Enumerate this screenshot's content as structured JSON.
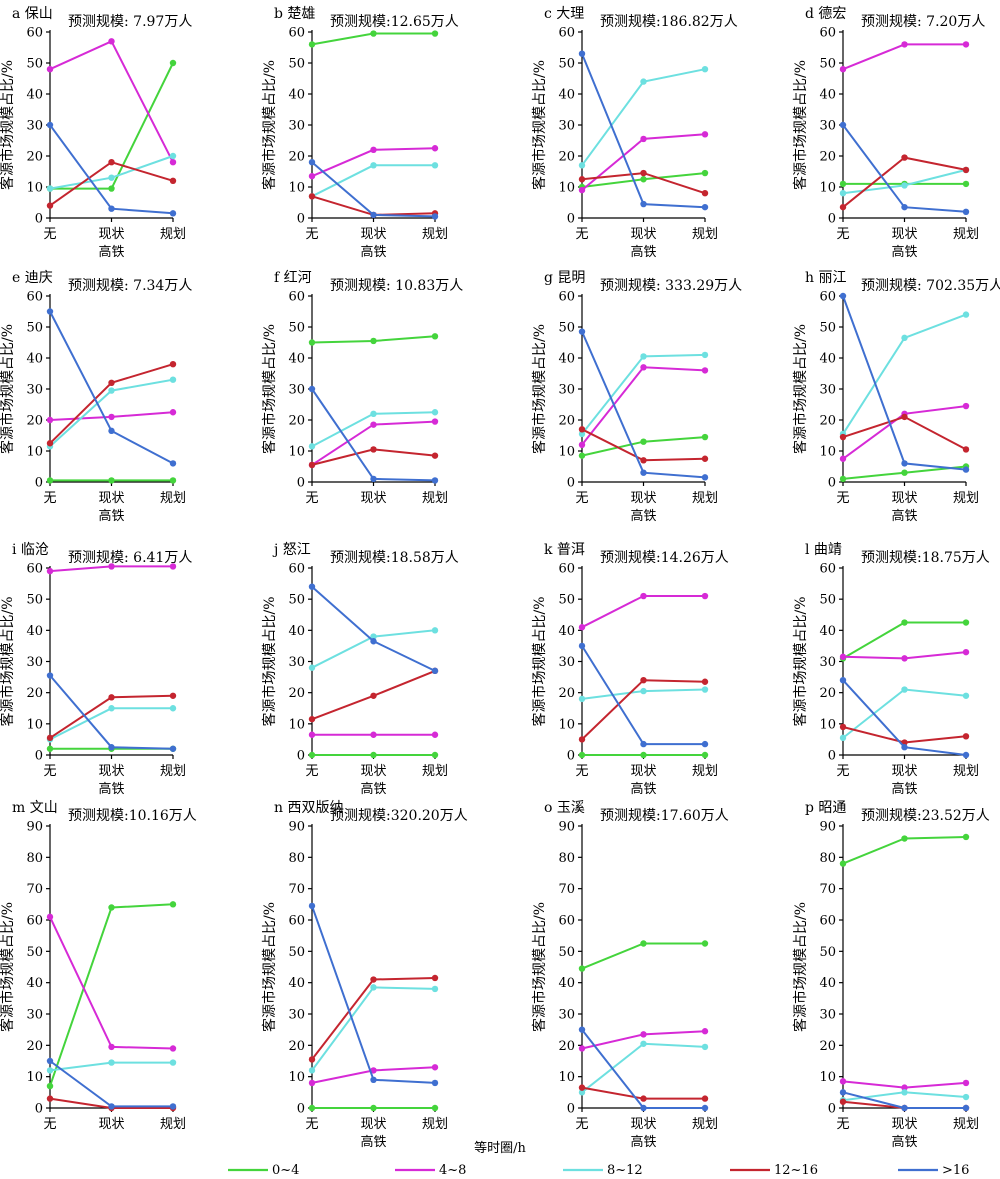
{
  "chart_data": {
    "type": "line",
    "legend": {
      "title": "等时圈/h",
      "placement": "bottom",
      "entries": [
        {
          "key": "s0",
          "label": "0~4",
          "color": "#44d43c"
        },
        {
          "key": "s1",
          "label": "4~8",
          "color": "#d62ad6"
        },
        {
          "key": "s2",
          "label": "8~12",
          "color": "#6de0e0"
        },
        {
          "key": "s3",
          "label": "12~16",
          "color": "#c4252f"
        },
        {
          "key": "s4",
          "label": ">16",
          "color": "#3f6fd0"
        }
      ]
    },
    "categories": [
      "无",
      "现状",
      "规划"
    ],
    "xlabel": "高铁",
    "ylabel": "客源市场规模占比/%",
    "panels": [
      {
        "title": "a 保山",
        "scale": "预测规模: 7.97万人",
        "ylim": [
          0,
          60
        ],
        "yticks": [
          0,
          10,
          20,
          30,
          40,
          50,
          60
        ],
        "xlabel": "高铁",
        "series": [
          [
            9.5,
            9.5,
            50
          ],
          [
            48,
            57,
            18
          ],
          [
            9.5,
            13,
            20
          ],
          [
            4,
            18,
            12
          ],
          [
            30,
            3,
            1.5
          ]
        ]
      },
      {
        "title": "b 楚雄",
        "scale": "预测规模:12.65万人",
        "ylim": [
          0,
          60
        ],
        "yticks": [
          0,
          10,
          20,
          30,
          40,
          50,
          60
        ],
        "xlabel": "高铁",
        "series": [
          [
            56,
            59.5,
            59.5
          ],
          [
            13.5,
            22,
            22.5
          ],
          [
            7,
            17,
            17
          ],
          [
            7,
            1,
            1.5
          ],
          [
            18,
            1,
            0.5
          ]
        ]
      },
      {
        "title": "c 大理",
        "scale": "预测规模:186.82万人",
        "ylim": [
          0,
          60
        ],
        "yticks": [
          0,
          10,
          20,
          30,
          40,
          50,
          60
        ],
        "xlabel": "高铁",
        "series": [
          [
            10,
            12.5,
            14.5
          ],
          [
            9,
            25.5,
            27
          ],
          [
            17,
            44,
            48
          ],
          [
            12.5,
            14.5,
            8
          ],
          [
            53,
            4.5,
            3.5
          ]
        ]
      },
      {
        "title": "d 德宏",
        "scale": "预测规模: 7.20万人",
        "ylim": [
          0,
          60
        ],
        "yticks": [
          0,
          10,
          20,
          30,
          40,
          50,
          60
        ],
        "xlabel": "高铁",
        "series": [
          [
            11,
            11,
            11
          ],
          [
            48,
            56,
            56
          ],
          [
            8,
            10.5,
            15.5
          ],
          [
            3.5,
            19.5,
            15.5
          ],
          [
            30,
            3.5,
            2
          ]
        ]
      },
      {
        "title": "e 迪庆",
        "scale": "预测规模: 7.34万人",
        "ylim": [
          0,
          60
        ],
        "yticks": [
          0,
          10,
          20,
          30,
          40,
          50,
          60
        ],
        "xlabel": "高铁",
        "series": [
          [
            0.5,
            0.5,
            0.5
          ],
          [
            20,
            21,
            22.5
          ],
          [
            11.5,
            29.5,
            33
          ],
          [
            12.5,
            32,
            38
          ],
          [
            55,
            16.5,
            6
          ]
        ]
      },
      {
        "title": "f 红河",
        "scale": "预测规模: 10.83万人",
        "ylim": [
          0,
          60
        ],
        "yticks": [
          0,
          10,
          20,
          30,
          40,
          50,
          60
        ],
        "xlabel": "",
        "series": [
          [
            45,
            45.5,
            47
          ],
          [
            5.5,
            18.5,
            19.5
          ],
          [
            11.5,
            22,
            22.5
          ],
          [
            5.5,
            10.5,
            8.5
          ],
          [
            30,
            1,
            0.5
          ]
        ]
      },
      {
        "title": "g 昆明",
        "scale": "预测规模: 333.29万人",
        "ylim": [
          0,
          60
        ],
        "yticks": [
          0,
          10,
          20,
          30,
          40,
          50,
          60
        ],
        "xlabel": "高铁",
        "series": [
          [
            8.5,
            13,
            14.5
          ],
          [
            12,
            37,
            36
          ],
          [
            15.5,
            40.5,
            41
          ],
          [
            17,
            7,
            7.5
          ],
          [
            48.5,
            3,
            1.5
          ]
        ]
      },
      {
        "title": "h 丽江",
        "scale": "预测规模: 702.35万人",
        "ylim": [
          0,
          60
        ],
        "yticks": [
          0,
          10,
          20,
          30,
          40,
          50,
          60
        ],
        "xlabel": "高铁",
        "series": [
          [
            1,
            3,
            5
          ],
          [
            7.5,
            22,
            24.5
          ],
          [
            15.5,
            46.5,
            54
          ],
          [
            14.5,
            21,
            10.5
          ],
          [
            60,
            6,
            4
          ]
        ]
      },
      {
        "title": "i 临沧",
        "scale": "预测规模: 6.41万人",
        "ylim": [
          0,
          60
        ],
        "yticks": [
          0,
          10,
          20,
          30,
          40,
          50,
          60
        ],
        "xlabel": "高铁",
        "series": [
          [
            2,
            2,
            2
          ],
          [
            59,
            60.5,
            60.5
          ],
          [
            5,
            15,
            15
          ],
          [
            5.5,
            18.5,
            19
          ],
          [
            25.5,
            2.5,
            2
          ]
        ]
      },
      {
        "title": "j 怒江",
        "scale": "预测规模:18.58万人",
        "ylim": [
          0,
          60
        ],
        "yticks": [
          0,
          10,
          20,
          30,
          40,
          50,
          60
        ],
        "xlabel": "高铁",
        "series": [
          [
            0,
            0,
            0
          ],
          [
            6.5,
            6.5,
            6.5
          ],
          [
            28,
            38,
            40
          ],
          [
            11.5,
            19,
            27
          ],
          [
            54,
            36.5,
            27
          ]
        ]
      },
      {
        "title": "k 普洱",
        "scale": "预测规模:14.26万人",
        "ylim": [
          0,
          60
        ],
        "yticks": [
          0,
          10,
          20,
          30,
          40,
          50,
          60
        ],
        "xlabel": "高铁",
        "series": [
          [
            0,
            0,
            0
          ],
          [
            41,
            51,
            51
          ],
          [
            18,
            20.5,
            21
          ],
          [
            5,
            24,
            23.5
          ],
          [
            35,
            3.5,
            3.5
          ]
        ]
      },
      {
        "title": "l 曲靖",
        "scale": "预测规模:18.75万人",
        "ylim": [
          0,
          60
        ],
        "yticks": [
          0,
          10,
          20,
          30,
          40,
          50,
          60
        ],
        "xlabel": "高铁",
        "series": [
          [
            31,
            42.5,
            42.5
          ],
          [
            31.5,
            31,
            33
          ],
          [
            5.5,
            21,
            19
          ],
          [
            9,
            4,
            6
          ],
          [
            24,
            2.5,
            0
          ]
        ]
      },
      {
        "title": "m 文山",
        "scale": "预测规模:10.16万人",
        "ylim": [
          0,
          90
        ],
        "yticks": [
          0,
          10,
          20,
          30,
          40,
          50,
          60,
          70,
          80,
          90
        ],
        "xlabel": "",
        "series": [
          [
            7,
            64,
            65
          ],
          [
            61,
            19.5,
            19
          ],
          [
            12,
            14.5,
            14.5
          ],
          [
            3,
            0,
            0
          ],
          [
            15,
            0.5,
            0.5
          ]
        ]
      },
      {
        "title": "n 西双版纳",
        "scale": "预测规模:320.20万人",
        "ylim": [
          0,
          90
        ],
        "yticks": [
          0,
          10,
          20,
          30,
          40,
          50,
          60,
          70,
          80,
          90
        ],
        "xlabel": "高铁",
        "series": [
          [
            0,
            0,
            0
          ],
          [
            8,
            12,
            13
          ],
          [
            12,
            38.5,
            38
          ],
          [
            15.5,
            41,
            41.5
          ],
          [
            64.5,
            9,
            8
          ]
        ]
      },
      {
        "title": "o 玉溪",
        "scale": "预测规模:17.60万人",
        "ylim": [
          0,
          90
        ],
        "yticks": [
          0,
          10,
          20,
          30,
          40,
          50,
          60,
          70,
          80,
          90
        ],
        "xlabel": "高铁",
        "series": [
          [
            44.5,
            52.5,
            52.5
          ],
          [
            19,
            23.5,
            24.5
          ],
          [
            5,
            20.5,
            19.5
          ],
          [
            6.5,
            3,
            3
          ],
          [
            25,
            0,
            0
          ]
        ]
      },
      {
        "title": "p 昭通",
        "scale": "预测规模:23.52万人",
        "ylim": [
          0,
          90
        ],
        "yticks": [
          0,
          10,
          20,
          30,
          40,
          50,
          60,
          70,
          80,
          90
        ],
        "xlabel": "高铁",
        "series": [
          [
            78,
            86,
            86.5
          ],
          [
            8.5,
            6.5,
            8
          ],
          [
            2.5,
            5,
            3.5
          ],
          [
            2,
            0,
            0
          ],
          [
            5,
            0,
            0
          ]
        ]
      }
    ]
  }
}
